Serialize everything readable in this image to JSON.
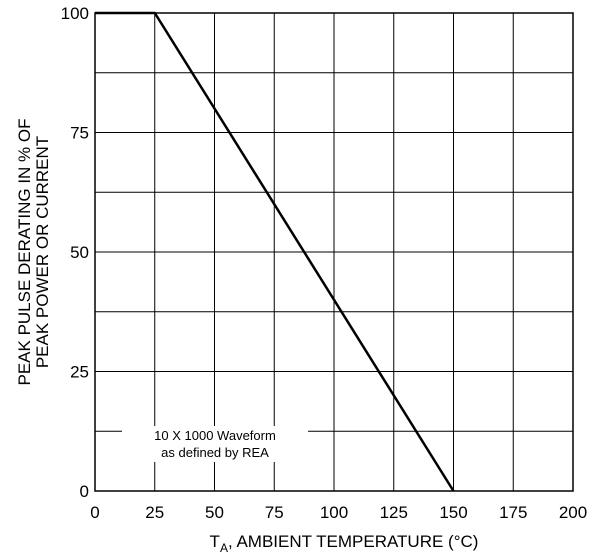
{
  "chart_data": {
    "type": "line",
    "title": "",
    "xlabel": {
      "main": "T",
      "sub": "A",
      "rest": ", AMBIENT TEMPERATURE (°C)"
    },
    "ylabel": [
      "PEAK PULSE DERATING IN % OF",
      "PEAK POWER OR CURRENT"
    ],
    "xlim": [
      0,
      200
    ],
    "ylim": [
      0,
      100
    ],
    "xticks": [
      0,
      25,
      50,
      75,
      100,
      125,
      150,
      175,
      200
    ],
    "yticks": [
      0,
      25,
      50,
      75,
      100
    ],
    "grid": true,
    "series": [
      {
        "x": [
          0,
          25,
          150
        ],
        "y": [
          100,
          100,
          0
        ]
      }
    ],
    "annotation": [
      "10 X 1000 Waveform",
      "as defined by REA"
    ]
  }
}
